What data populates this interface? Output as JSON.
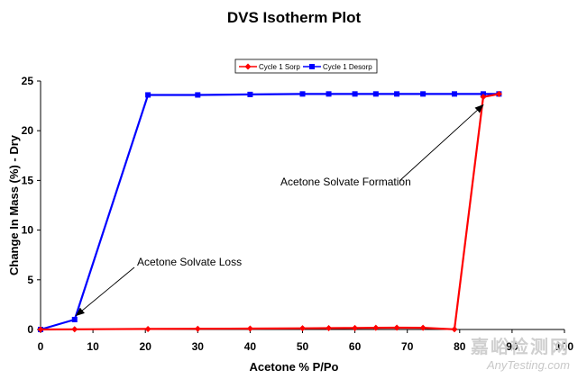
{
  "chart_data": {
    "type": "line",
    "title": "DVS Isotherm Plot",
    "xlabel": "Acetone % P/Po",
    "ylabel": "Change In Mass (%) - Dry",
    "xlim": [
      0,
      100
    ],
    "ylim": [
      0,
      25
    ],
    "xticks": [
      0,
      10,
      20,
      30,
      40,
      50,
      60,
      70,
      80,
      90,
      100
    ],
    "yticks": [
      0,
      5,
      10,
      15,
      20,
      25
    ],
    "grid": false,
    "legend_position": "top-center",
    "series": [
      {
        "name": "Cycle 1 Sorp",
        "color": "#ff0000",
        "marker": "diamond",
        "x": [
          0,
          6.5,
          20.5,
          30,
          40,
          50,
          55,
          60,
          64,
          68,
          73,
          79,
          84.5,
          87.5
        ],
        "y": [
          0,
          0.02,
          0.05,
          0.07,
          0.09,
          0.12,
          0.14,
          0.15,
          0.17,
          0.18,
          0.17,
          0.02,
          23.4,
          23.7
        ]
      },
      {
        "name": "Cycle 1 Desorp",
        "color": "#0000ff",
        "marker": "square",
        "x": [
          87.5,
          84.5,
          79,
          73,
          68,
          64,
          60,
          55,
          50,
          40,
          30,
          20.5,
          6.5,
          0
        ],
        "y": [
          23.7,
          23.7,
          23.7,
          23.7,
          23.7,
          23.7,
          23.7,
          23.7,
          23.7,
          23.65,
          23.6,
          23.6,
          1.0,
          0
        ]
      }
    ],
    "annotations": [
      {
        "text": "Acetone Solvate Loss",
        "target_x": 6.8,
        "target_y": 1.4
      },
      {
        "text": "Acetone Solvate Formation",
        "target_x": 84.5,
        "target_y": 22.6
      }
    ]
  },
  "watermark": {
    "cn": "嘉峪检测网",
    "en": "AnyTesting.com"
  }
}
